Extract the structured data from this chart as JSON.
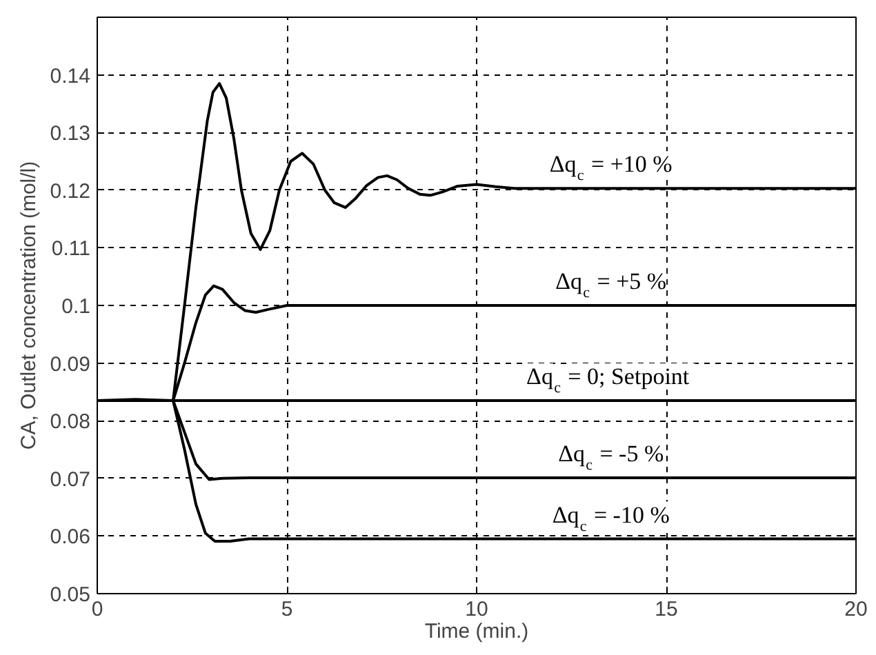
{
  "chart_data": {
    "type": "line",
    "xlabel": "Time (min.)",
    "ylabel": "CA, Outlet concentration (mol/l)",
    "xlim": [
      0,
      20
    ],
    "ylim": [
      0.05,
      0.15
    ],
    "xticks": [
      0,
      5,
      10,
      15,
      20
    ],
    "yticks": [
      0.05,
      0.06,
      0.07,
      0.08,
      0.09,
      0.1,
      0.11,
      0.12,
      0.13,
      0.14
    ],
    "grid": true,
    "line_style": "solid",
    "marker": "none",
    "series": [
      {
        "color": "#000000",
        "x": [
          0,
          1,
          2,
          2.3,
          2.6,
          2.9,
          3.05,
          3.22,
          3.4,
          3.6,
          3.8,
          4.05,
          4.3,
          4.55,
          4.8,
          5.1,
          5.4,
          5.7,
          6,
          6.25,
          6.54,
          6.8,
          7.1,
          7.4,
          7.64,
          7.9,
          8.2,
          8.5,
          8.78,
          9.1,
          9.5,
          10,
          10.5,
          11,
          12,
          15,
          20
        ],
        "values": [
          0.0835,
          0.0837,
          0.0835,
          0.1,
          0.117,
          0.132,
          0.137,
          0.1385,
          0.136,
          0.129,
          0.12,
          0.1125,
          0.1097,
          0.113,
          0.12,
          0.125,
          0.1264,
          0.1245,
          0.12,
          0.1178,
          0.117,
          0.1185,
          0.1208,
          0.1222,
          0.1225,
          0.1218,
          0.1203,
          0.1193,
          0.1191,
          0.1197,
          0.1207,
          0.121,
          0.1206,
          0.1203,
          0.1203,
          0.1203,
          0.1203
        ]
      },
      {
        "color": "#000000",
        "x": [
          0,
          2,
          2.3,
          2.6,
          2.85,
          3.07,
          3.3,
          3.6,
          3.9,
          4.18,
          4.5,
          5,
          6,
          20
        ],
        "values": [
          0.0835,
          0.0835,
          0.09,
          0.097,
          0.1018,
          0.1034,
          0.1028,
          0.1005,
          0.0991,
          0.0988,
          0.0993,
          0.1,
          0.1,
          0.1
        ]
      },
      {
        "color": "#000000",
        "x": [
          0,
          20
        ],
        "values": [
          0.0835,
          0.0835
        ]
      },
      {
        "color": "#000000",
        "x": [
          0,
          2,
          2.3,
          2.6,
          2.95,
          3.3,
          4,
          20
        ],
        "values": [
          0.0835,
          0.0835,
          0.078,
          0.0725,
          0.0698,
          0.07,
          0.0701,
          0.0701
        ]
      },
      {
        "color": "#000000",
        "x": [
          0,
          2,
          2.3,
          2.6,
          2.85,
          3.1,
          3.5,
          4,
          20
        ],
        "values": [
          0.0835,
          0.0835,
          0.075,
          0.0655,
          0.0605,
          0.0591,
          0.0591,
          0.0595,
          0.0595
        ]
      }
    ],
    "annotations": [
      {
        "text": "Δq$_{c}$ = +10 %",
        "y": 0.1203
      },
      {
        "text": "Δq$_{c}$ = +5 %",
        "y": 0.1
      },
      {
        "text": "Δq$_{c}$ = 0;  Setpoint",
        "y": 0.0835
      },
      {
        "text": "Δq$_{c}$ = -5 %",
        "y": 0.0701
      },
      {
        "text": "Δq$_{c}$ = -10 %",
        "y": 0.0595
      }
    ]
  }
}
